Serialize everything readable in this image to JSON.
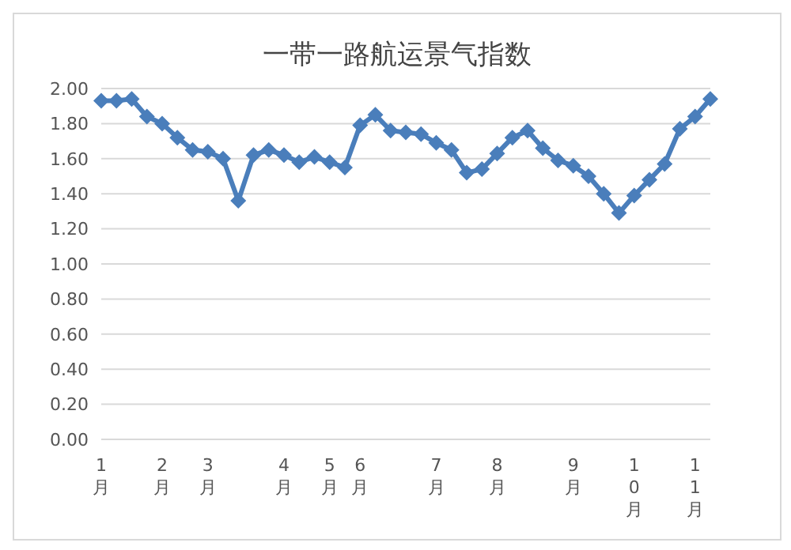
{
  "chart_data": {
    "type": "line",
    "title": "一带一路航运景气指数",
    "categories": [
      "1月",
      null,
      null,
      null,
      "2月",
      null,
      null,
      "3月",
      null,
      null,
      null,
      null,
      "4月",
      null,
      null,
      "5月",
      null,
      "6月",
      null,
      null,
      null,
      null,
      "7月",
      null,
      null,
      null,
      "8月",
      null,
      null,
      null,
      null,
      "9月",
      null,
      null,
      null,
      "10月",
      null,
      null,
      null,
      "11月",
      null
    ],
    "series": [
      {
        "color": "#4a7ebb",
        "values": [
          1.93,
          1.93,
          1.94,
          1.84,
          1.8,
          1.72,
          1.65,
          1.64,
          1.6,
          1.36,
          1.62,
          1.65,
          1.62,
          1.58,
          1.61,
          1.58,
          1.55,
          1.79,
          1.85,
          1.76,
          1.75,
          1.74,
          1.69,
          1.65,
          1.52,
          1.54,
          1.63,
          1.72,
          1.76,
          1.66,
          1.59,
          1.56,
          1.5,
          1.4,
          1.29,
          1.39,
          1.48,
          1.57,
          1.77,
          1.84,
          1.94
        ]
      }
    ],
    "ylim": [
      0,
      2
    ],
    "yticks": [
      {
        "value": 0,
        "label": "0.00"
      },
      {
        "value": 0.2,
        "label": "0.20"
      },
      {
        "value": 0.4,
        "label": "0.40"
      },
      {
        "value": 0.6,
        "label": "0.60"
      },
      {
        "value": 0.8,
        "label": "0.80"
      },
      {
        "value": 1,
        "label": "1.00"
      },
      {
        "value": 1.2,
        "label": "1.20"
      },
      {
        "value": 1.4,
        "label": "1.40"
      },
      {
        "value": 1.6,
        "label": "1.60"
      },
      {
        "value": 1.8,
        "label": "1.80"
      },
      {
        "value": 2,
        "label": "2.00"
      }
    ],
    "grid": "y",
    "marker": "diamond",
    "line_style": "solid",
    "legend": false
  }
}
